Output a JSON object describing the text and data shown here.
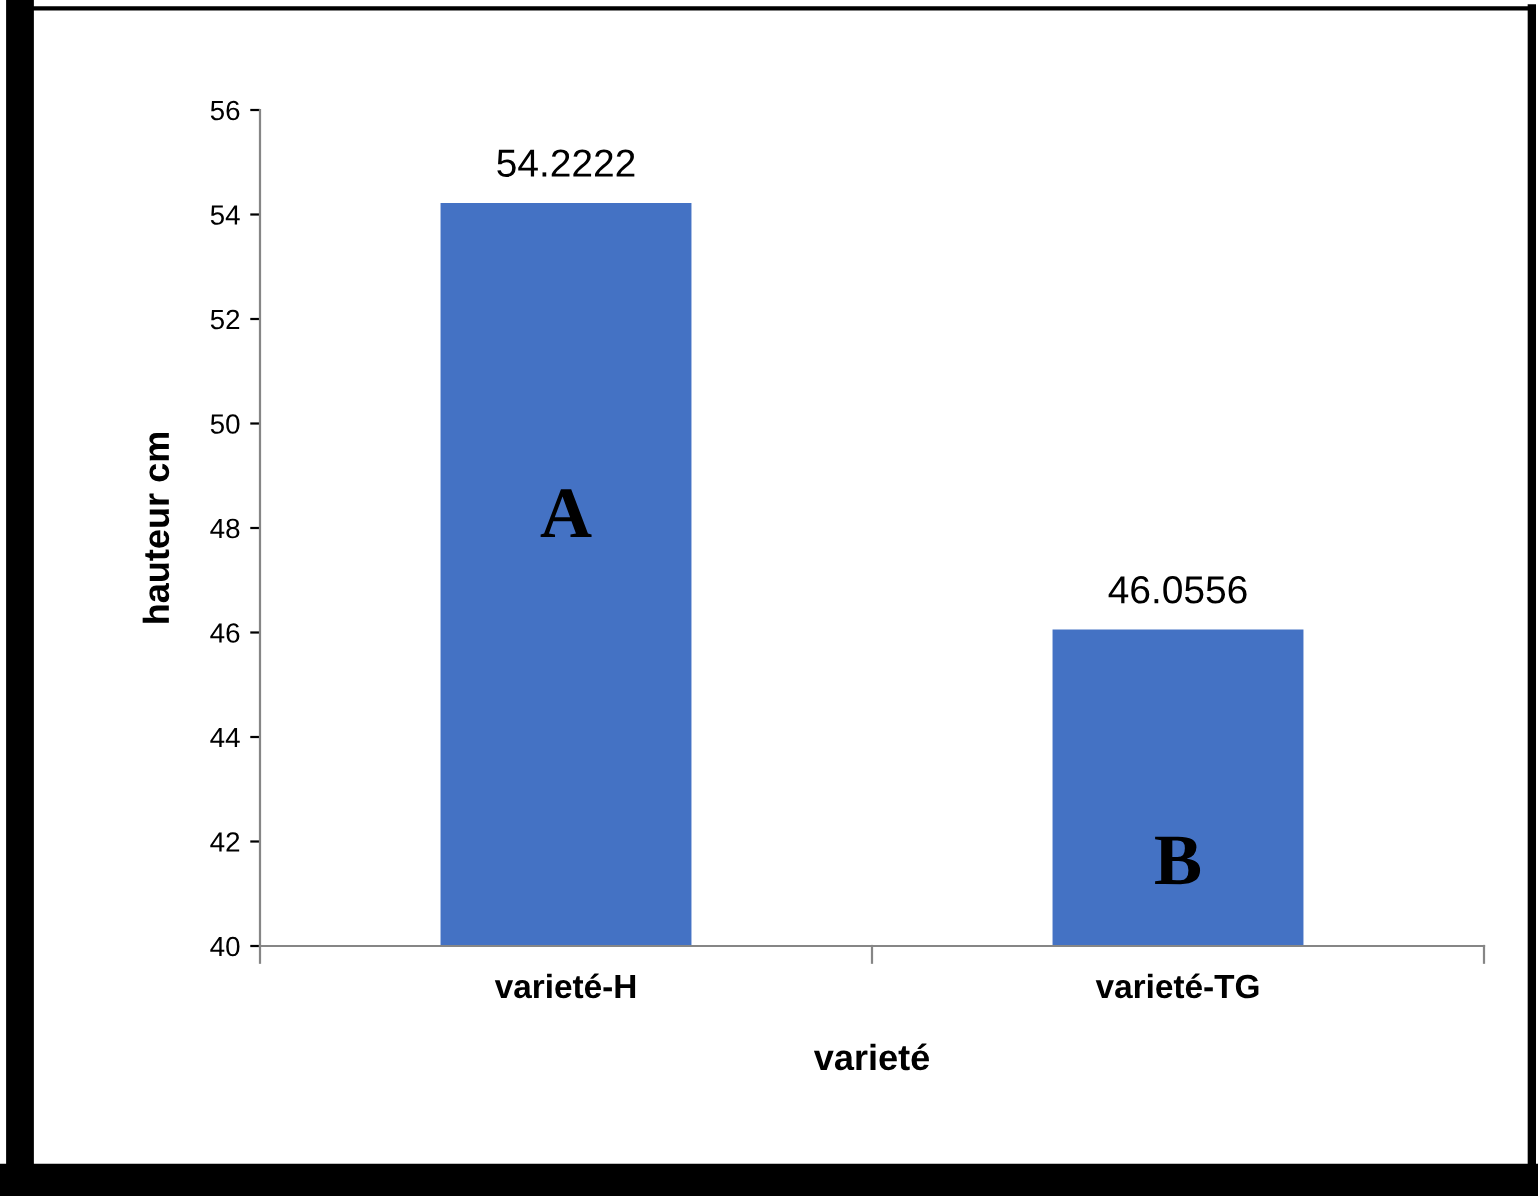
{
  "chart_data": {
    "type": "bar",
    "xlabel": "varieté",
    "ylabel": "hauteur cm",
    "categories": [
      "varieté-H",
      "varieté-TG"
    ],
    "values": [
      54.2222,
      46.0556
    ],
    "color": "#4472c4",
    "ylim": [
      40,
      56
    ],
    "yticks": [
      40,
      42,
      44,
      46,
      48,
      50,
      52,
      54,
      56
    ],
    "grid": false,
    "data_labels": true,
    "annotations": [
      "A",
      "B"
    ]
  }
}
